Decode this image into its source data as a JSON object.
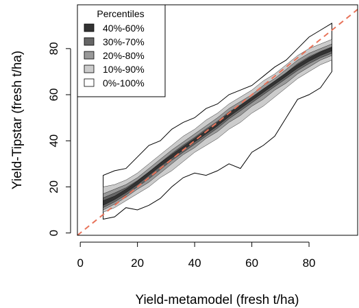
{
  "chart_data": {
    "type": "area",
    "xlabel": "Yield-metamodel (fresh t/ha)",
    "ylabel": "Yield-Tipstar (fresh t/ha)",
    "xlim": [
      -1,
      97
    ],
    "ylim": [
      -1,
      99
    ],
    "xticks": [
      "0",
      "20",
      "40",
      "60",
      "80"
    ],
    "yticks": [
      "0",
      "20",
      "40",
      "60",
      "80"
    ],
    "legend": {
      "title": "Percentiles",
      "position": "top-left",
      "entries": [
        {
          "label": "40%-60%",
          "color": "#333333"
        },
        {
          "label": "30%-70%",
          "color": "#666666"
        },
        {
          "label": "20%-80%",
          "color": "#999999"
        },
        {
          "label": "10%-90%",
          "color": "#cccccc"
        },
        {
          "label": "0%-100%",
          "color": "#ffffff"
        }
      ]
    },
    "x": [
      8,
      12,
      16,
      20,
      24,
      28,
      32,
      36,
      40,
      44,
      48,
      52,
      56,
      60,
      64,
      68,
      72,
      76,
      80,
      84,
      88
    ],
    "bands": [
      {
        "name": "0%-100%",
        "color": "#ffffff",
        "lower": [
          6,
          7,
          11,
          10,
          12,
          15,
          20,
          24,
          26,
          25,
          27,
          30,
          28,
          35,
          38,
          42,
          50,
          58,
          60,
          63,
          70
        ],
        "upper": [
          25,
          27,
          28,
          33,
          38,
          40,
          45,
          48,
          50,
          54,
          56,
          60,
          62,
          64,
          68,
          72,
          75,
          80,
          85,
          88,
          91
        ]
      },
      {
        "name": "10%-90%",
        "color": "#cccccc",
        "lower": [
          9,
          11,
          14,
          17,
          20,
          24,
          27,
          31,
          35,
          38,
          41,
          45,
          48,
          52,
          55,
          59,
          63,
          67,
          70,
          73,
          75
        ],
        "upper": [
          20,
          21,
          23,
          26,
          30,
          34,
          38,
          42,
          45,
          49,
          52,
          56,
          59,
          62,
          66,
          69,
          73,
          77,
          80,
          82,
          84
        ]
      },
      {
        "name": "20%-80%",
        "color": "#999999",
        "lower": [
          10,
          12.5,
          15.5,
          19,
          22,
          26,
          30,
          34,
          37,
          41,
          44,
          48,
          51,
          55,
          58,
          62,
          65,
          69,
          72,
          75,
          77
        ],
        "upper": [
          17,
          19,
          21,
          24,
          28,
          32,
          36,
          39.5,
          43,
          46.5,
          50,
          54,
          57,
          60,
          64,
          67,
          71,
          75,
          78,
          80,
          82
        ]
      },
      {
        "name": "30%-70%",
        "color": "#666666",
        "lower": [
          11,
          13.5,
          16.5,
          20,
          23.5,
          27.5,
          31.5,
          35,
          38.5,
          42,
          45.5,
          49.5,
          53,
          56.5,
          60,
          63.5,
          67,
          70.5,
          73.5,
          76,
          78
        ]
      },
      {
        "name": "40%-60%",
        "color": "#333333",
        "lower": [
          12,
          14.5,
          17.5,
          21,
          25,
          29,
          32.5,
          36,
          39.5,
          43,
          46.5,
          50.5,
          54,
          57.5,
          61,
          64.5,
          68,
          71.5,
          74.5,
          77,
          79
        ],
        "upper": [
          14,
          16,
          19,
          22.5,
          26.5,
          30.5,
          34,
          37.5,
          41,
          44.5,
          48,
          52,
          55.5,
          59,
          62.5,
          66,
          69.5,
          73,
          76,
          78.5,
          80.5
        ]
      }
    ],
    "reference_line": {
      "style": "dashed",
      "color": "#e8735a",
      "slope": 1,
      "intercept": 0
    }
  }
}
